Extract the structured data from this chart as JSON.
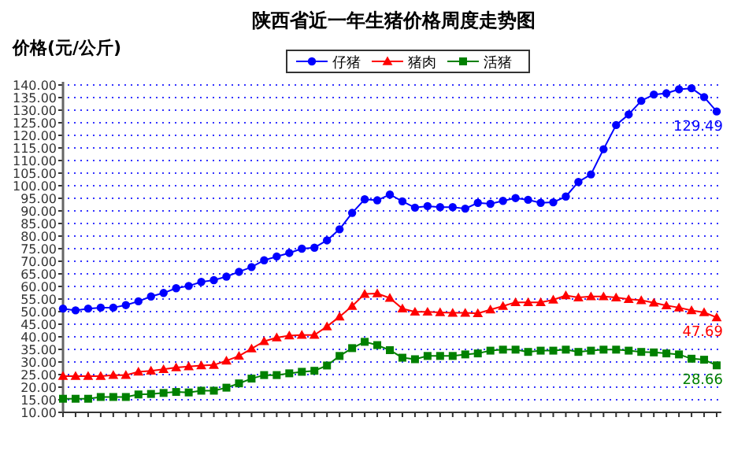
{
  "chart_data": {
    "type": "line",
    "title": "陕西省近一年生猪价格周度走势图",
    "ylabel": "价格(元/公斤)",
    "categories": [
      null,
      null,
      null,
      null,
      null,
      null,
      null,
      null,
      null,
      null,
      null,
      null,
      null,
      null,
      null,
      null,
      null,
      null,
      null,
      null,
      null,
      null,
      null,
      null,
      null,
      null,
      null,
      null,
      null,
      null,
      null,
      null,
      null,
      null,
      null,
      null,
      null,
      null,
      null,
      null,
      null,
      null,
      null,
      null,
      null,
      null,
      null,
      null,
      null,
      null,
      null,
      null,
      null
    ],
    "series": [
      {
        "name": "仔猪",
        "color": "#0000ff",
        "marker": "circle",
        "values": [
          51.2,
          50.5,
          51.2,
          51.6,
          51.6,
          52.6,
          54.1,
          56.0,
          57.4,
          59.3,
          60.2,
          61.8,
          62.5,
          63.9,
          65.8,
          67.7,
          70.4,
          71.9,
          73.3,
          75.0,
          75.4,
          78.3,
          82.7,
          89.2,
          94.6,
          94.2,
          96.5,
          93.8,
          91.3,
          91.9,
          91.5,
          91.5,
          90.9,
          93.2,
          92.8,
          94.0,
          95.1,
          94.4,
          93.2,
          93.4,
          95.7,
          101.5,
          104.5,
          114.5,
          124.1,
          128.3,
          133.7,
          136.2,
          136.7,
          138.3,
          138.7,
          135.2,
          129.49
        ],
        "value_labels": [
          null,
          null,
          null,
          null,
          null,
          null,
          null,
          null,
          null,
          null,
          null,
          null,
          null,
          null,
          null,
          null,
          null,
          null,
          null,
          null,
          null,
          null,
          null,
          null,
          null,
          null,
          null,
          null,
          null,
          null,
          null,
          null,
          null,
          null,
          null,
          null,
          null,
          null,
          null,
          null,
          null,
          null,
          null,
          null,
          null,
          null,
          null,
          null,
          null,
          null,
          null,
          null,
          "129.49"
        ]
      },
      {
        "name": "猪肉",
        "color": "#ff0000",
        "marker": "triangle",
        "values": [
          24.4,
          24.4,
          24.4,
          24.4,
          24.8,
          24.8,
          26.1,
          26.5,
          27.1,
          27.8,
          28.2,
          28.6,
          28.8,
          30.5,
          32.4,
          35.3,
          38.2,
          39.7,
          40.5,
          40.7,
          40.7,
          44.1,
          48.0,
          52.2,
          57.0,
          57.2,
          55.4,
          51.2,
          49.9,
          49.9,
          49.7,
          49.5,
          49.5,
          49.3,
          50.8,
          52.2,
          53.7,
          53.7,
          53.7,
          54.7,
          56.4,
          55.6,
          56.0,
          56.0,
          55.6,
          54.9,
          54.5,
          53.5,
          52.4,
          51.6,
          50.5,
          49.7,
          47.69
        ],
        "value_labels": [
          null,
          null,
          null,
          null,
          null,
          null,
          null,
          null,
          null,
          null,
          null,
          null,
          null,
          null,
          null,
          null,
          null,
          null,
          null,
          null,
          null,
          null,
          null,
          null,
          null,
          null,
          null,
          null,
          null,
          null,
          null,
          null,
          null,
          null,
          null,
          null,
          null,
          null,
          null,
          null,
          null,
          null,
          null,
          null,
          null,
          null,
          null,
          null,
          null,
          null,
          null,
          null,
          "47.69"
        ]
      },
      {
        "name": "活猪",
        "color": "#008000",
        "marker": "square",
        "values": [
          15.4,
          15.4,
          15.4,
          16.1,
          16.1,
          16.1,
          17.1,
          17.3,
          17.7,
          18.1,
          17.9,
          18.6,
          18.6,
          19.8,
          21.5,
          23.4,
          24.8,
          24.8,
          25.5,
          26.1,
          26.5,
          28.6,
          32.4,
          35.5,
          38.0,
          36.7,
          34.7,
          31.7,
          31.1,
          32.4,
          32.4,
          32.4,
          33.0,
          33.4,
          34.5,
          34.9,
          34.9,
          34.0,
          34.5,
          34.5,
          34.9,
          34.0,
          34.5,
          34.9,
          34.9,
          34.5,
          34.0,
          33.8,
          33.4,
          33.0,
          31.3,
          30.9,
          28.66
        ],
        "value_labels": [
          null,
          null,
          null,
          null,
          null,
          null,
          null,
          null,
          null,
          null,
          null,
          null,
          null,
          null,
          null,
          null,
          null,
          null,
          null,
          null,
          null,
          null,
          null,
          null,
          null,
          null,
          null,
          null,
          null,
          null,
          null,
          null,
          null,
          null,
          null,
          null,
          null,
          null,
          null,
          null,
          null,
          null,
          null,
          null,
          null,
          null,
          null,
          null,
          null,
          null,
          null,
          null,
          "28.66"
        ]
      }
    ],
    "ylim": [
      10,
      140
    ],
    "yticks": [
      {
        "value": 10,
        "label": "10.00"
      },
      {
        "value": 15,
        "label": "15.00"
      },
      {
        "value": 20,
        "label": "20.00"
      },
      {
        "value": 25,
        "label": "25.00"
      },
      {
        "value": 30,
        "label": "30.00"
      },
      {
        "value": 35,
        "label": "35.00"
      },
      {
        "value": 40,
        "label": "40.00"
      },
      {
        "value": 45,
        "label": "45.00"
      },
      {
        "value": 50,
        "label": "50.00"
      },
      {
        "value": 55,
        "label": "55.00"
      },
      {
        "value": 60,
        "label": "60.00"
      },
      {
        "value": 65,
        "label": "65.00"
      },
      {
        "value": 70,
        "label": "70.00"
      },
      {
        "value": 75,
        "label": "75.00"
      },
      {
        "value": 80,
        "label": "80.00"
      },
      {
        "value": 85,
        "label": "85.00"
      },
      {
        "value": 90,
        "label": "90.00"
      },
      {
        "value": 95,
        "label": "95.00"
      },
      {
        "value": 100,
        "label": "100.00"
      },
      {
        "value": 105,
        "label": "105.00"
      },
      {
        "value": 110,
        "label": "110.00"
      },
      {
        "value": 115,
        "label": "115.00"
      },
      {
        "value": 120,
        "label": "120.00"
      },
      {
        "value": 125,
        "label": "125.00"
      },
      {
        "value": 130,
        "label": "130.00"
      },
      {
        "value": 135,
        "label": "135.00"
      },
      {
        "value": 140,
        "label": "140.00"
      }
    ],
    "grid": "y",
    "legend": "top"
  }
}
